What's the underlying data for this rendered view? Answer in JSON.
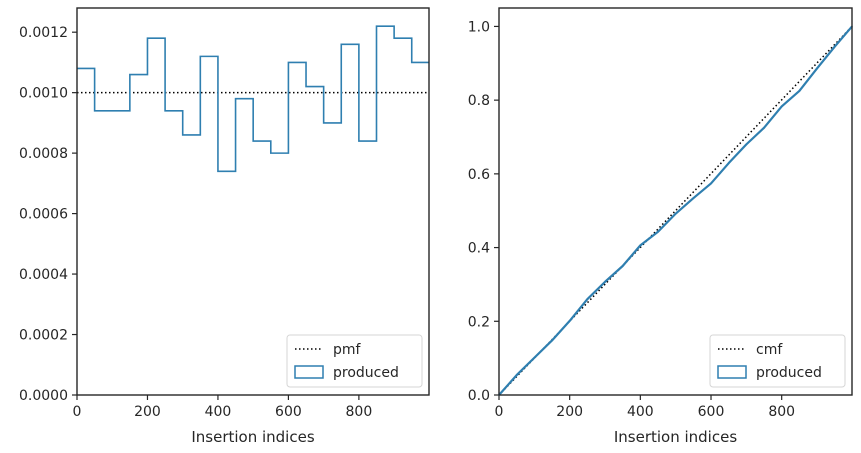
{
  "chart_data": [
    {
      "type": "step",
      "xlabel": "Insertion indices",
      "ylabel": "",
      "xlim": [
        0,
        999
      ],
      "ylim": [
        0,
        0.00128
      ],
      "xticks": [
        "0",
        "200",
        "400",
        "600",
        "800"
      ],
      "xtick_values": [
        0,
        200,
        400,
        600,
        800
      ],
      "yticks": [
        "0.0000",
        "0.0002",
        "0.0004",
        "0.0006",
        "0.0008",
        "0.0010",
        "0.0012"
      ],
      "ytick_values": [
        0,
        0.0002,
        0.0004,
        0.0006,
        0.0008,
        0.001,
        0.0012
      ],
      "legend_position": "lower-right",
      "legend": [
        {
          "label": "pmf",
          "style": "dotted",
          "color": "#000000"
        },
        {
          "label": "produced",
          "style": "step",
          "color": "#2f7fb0"
        }
      ],
      "reference_line": {
        "name": "pmf",
        "y": 0.001
      },
      "series": [
        {
          "name": "produced",
          "bin_width": 50,
          "bin_edges": [
            0,
            50,
            100,
            150,
            200,
            250,
            300,
            350,
            400,
            450,
            500,
            550,
            600,
            650,
            700,
            750,
            800,
            850,
            900,
            950,
            999
          ],
          "values": [
            0.00108,
            0.00094,
            0.00094,
            0.00106,
            0.00118,
            0.00094,
            0.00086,
            0.00112,
            0.00074,
            0.00098,
            0.00084,
            0.0008,
            0.0011,
            0.00102,
            0.0009,
            0.00116,
            0.00084,
            0.00122,
            0.00118,
            0.0011
          ]
        }
      ],
      "colors": {
        "produced": "#2f7fb0",
        "pmf": "#000000"
      }
    },
    {
      "type": "line",
      "xlabel": "Insertion indices",
      "ylabel": "",
      "xlim": [
        0,
        999
      ],
      "ylim": [
        0,
        1.05
      ],
      "xticks": [
        "0",
        "200",
        "400",
        "600",
        "800"
      ],
      "xtick_values": [
        0,
        200,
        400,
        600,
        800
      ],
      "yticks": [
        "0.0",
        "0.2",
        "0.4",
        "0.6",
        "0.8",
        "1.0"
      ],
      "ytick_values": [
        0,
        0.2,
        0.4,
        0.6,
        0.8,
        1.0
      ],
      "legend_position": "lower-right",
      "legend": [
        {
          "label": "cmf",
          "style": "dotted",
          "color": "#000000"
        },
        {
          "label": "produced",
          "style": "step",
          "color": "#2f7fb0"
        }
      ],
      "series": [
        {
          "name": "cmf",
          "x": [
            0,
            999
          ],
          "y": [
            0,
            1.0
          ]
        },
        {
          "name": "produced",
          "x": [
            0,
            50,
            100,
            150,
            200,
            250,
            300,
            350,
            400,
            450,
            500,
            550,
            600,
            650,
            700,
            750,
            800,
            850,
            900,
            950,
            999
          ],
          "y": [
            0,
            0.054,
            0.101,
            0.148,
            0.201,
            0.26,
            0.307,
            0.35,
            0.406,
            0.443,
            0.492,
            0.534,
            0.574,
            0.629,
            0.68,
            0.725,
            0.783,
            0.825,
            0.886,
            0.945,
            1.0
          ]
        }
      ],
      "colors": {
        "produced": "#2f7fb0",
        "cmf": "#000000"
      }
    }
  ]
}
